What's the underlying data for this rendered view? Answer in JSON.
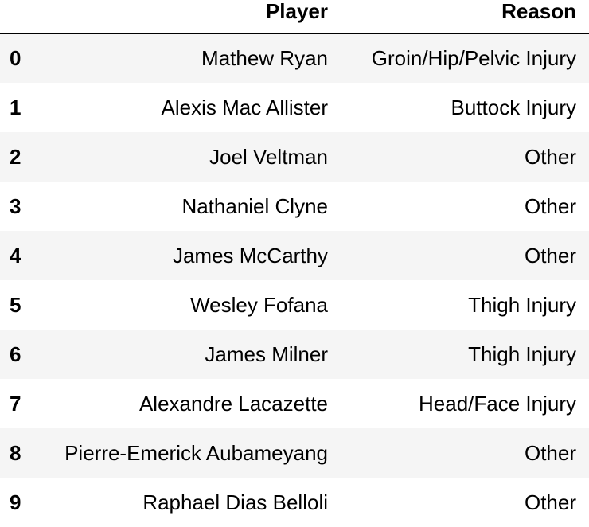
{
  "table": {
    "columns": [
      "Player",
      "Reason"
    ],
    "rows": [
      {
        "index": "0",
        "player": "Mathew Ryan",
        "reason": "Groin/Hip/Pelvic Injury"
      },
      {
        "index": "1",
        "player": "Alexis Mac Allister",
        "reason": "Buttock Injury"
      },
      {
        "index": "2",
        "player": "Joel Veltman",
        "reason": "Other"
      },
      {
        "index": "3",
        "player": "Nathaniel Clyne",
        "reason": "Other"
      },
      {
        "index": "4",
        "player": "James McCarthy",
        "reason": "Other"
      },
      {
        "index": "5",
        "player": "Wesley Fofana",
        "reason": "Thigh Injury"
      },
      {
        "index": "6",
        "player": "James Milner",
        "reason": "Thigh Injury"
      },
      {
        "index": "7",
        "player": "Alexandre Lacazette",
        "reason": "Head/Face Injury"
      },
      {
        "index": "8",
        "player": "Pierre-Emerick Aubameyang",
        "reason": "Other"
      },
      {
        "index": "9",
        "player": "Raphael Dias Belloli",
        "reason": "Other"
      }
    ]
  }
}
